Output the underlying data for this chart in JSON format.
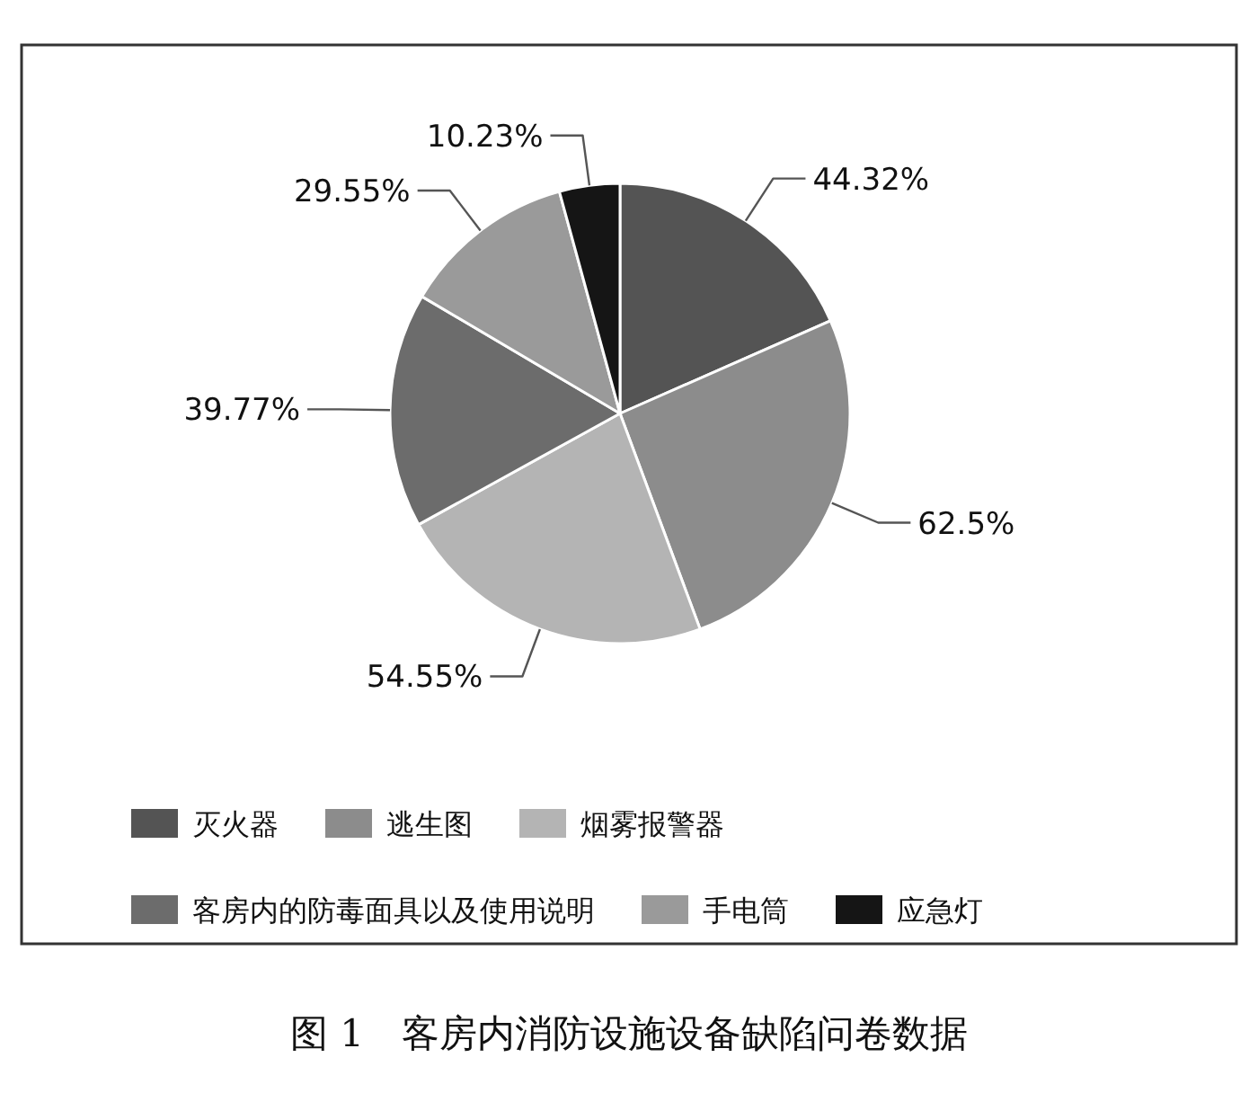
{
  "chart_data": {
    "type": "pie",
    "categories": [
      "灭火器",
      "逃生图",
      "烟雾报警器",
      "客房内的防毒面具以及使用说明",
      "手电筒",
      "应急灯"
    ],
    "values": [
      44.32,
      62.5,
      54.55,
      39.77,
      29.55,
      10.23
    ],
    "value_labels": [
      "44.32%",
      "62.5%",
      "54.55%",
      "39.77%",
      "29.55%",
      "10.23%"
    ],
    "colors": [
      "#545454",
      "#8c8c8c",
      "#b4b4b4",
      "#6c6c6c",
      "#9a9a9a",
      "#151515"
    ],
    "legend": "bottom",
    "annotations": [
      "图 1　客房内消防设施设备缺陷问卷数据"
    ]
  }
}
